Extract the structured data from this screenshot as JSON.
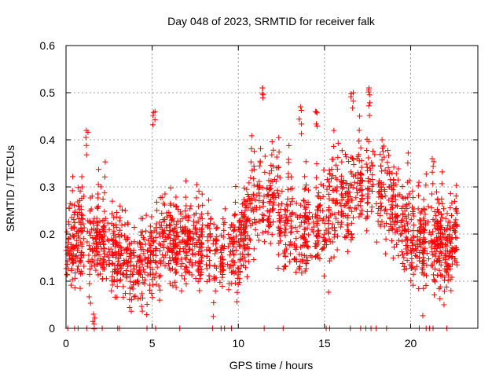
{
  "chart_data": {
    "type": "scatter",
    "title": "Day 048 of 2023, SRMTID for receiver falk",
    "xlabel": "GPS time / hours",
    "ylabel": "SRMTID / TECUs",
    "xlim": [
      0,
      23.9
    ],
    "ylim": [
      0,
      0.6
    ],
    "x_ticks": [
      0,
      5,
      10,
      15,
      20
    ],
    "x_tick_labels": [
      "0",
      "5",
      "10",
      "15",
      "20"
    ],
    "y_ticks": [
      0,
      0.1,
      0.2,
      0.3,
      0.4,
      0.5,
      0.6
    ],
    "y_tick_labels": [
      "0",
      "0.1",
      "0.2",
      "0.3",
      "0.4",
      "0.5",
      "0.6"
    ],
    "grid": true,
    "marker": "+",
    "series": [
      {
        "name": "SRMTID",
        "color": "#ff0000",
        "x_range": [
          0,
          22.7
        ],
        "point_count_approx": 2200,
        "profile_hours": [
          0,
          1,
          2,
          3,
          4,
          5,
          6,
          7,
          8,
          9,
          10,
          11,
          12,
          13,
          14,
          15,
          16,
          17,
          18,
          19,
          20,
          21,
          22,
          22.7
        ],
        "profile_median": [
          0.16,
          0.19,
          0.17,
          0.14,
          0.12,
          0.15,
          0.19,
          0.17,
          0.16,
          0.15,
          0.16,
          0.25,
          0.25,
          0.19,
          0.19,
          0.2,
          0.25,
          0.28,
          0.29,
          0.24,
          0.16,
          0.18,
          0.15,
          0.17
        ],
        "profile_spread": [
          0.05,
          0.06,
          0.06,
          0.05,
          0.04,
          0.05,
          0.05,
          0.04,
          0.05,
          0.04,
          0.05,
          0.06,
          0.06,
          0.06,
          0.06,
          0.06,
          0.07,
          0.07,
          0.06,
          0.06,
          0.06,
          0.06,
          0.05,
          0.05
        ],
        "notable_points": [
          {
            "x": 1.2,
            "y": 0.42
          },
          {
            "x": 1.6,
            "y": 0.03
          },
          {
            "x": 5.1,
            "y": 0.46
          },
          {
            "x": 11.4,
            "y": 0.51
          },
          {
            "x": 13.6,
            "y": 0.47
          },
          {
            "x": 14.5,
            "y": 0.46
          },
          {
            "x": 16.6,
            "y": 0.5
          },
          {
            "x": 17.6,
            "y": 0.51
          },
          {
            "x": 18.4,
            "y": 0.4
          },
          {
            "x": 21.3,
            "y": 0.36
          }
        ],
        "zero_value_hours": [
          0.1,
          0.5,
          0.7,
          1.2,
          2.1,
          3.0,
          3.1,
          4.7,
          5.2,
          6.6,
          8.5,
          9.0,
          9.2,
          9.6,
          11.5,
          12.6,
          15.1,
          15.3,
          16.5,
          17.1,
          17.4,
          17.7,
          18.0,
          18.6,
          20.5,
          20.9,
          21.1,
          21.3,
          22.1
        ]
      }
    ]
  }
}
